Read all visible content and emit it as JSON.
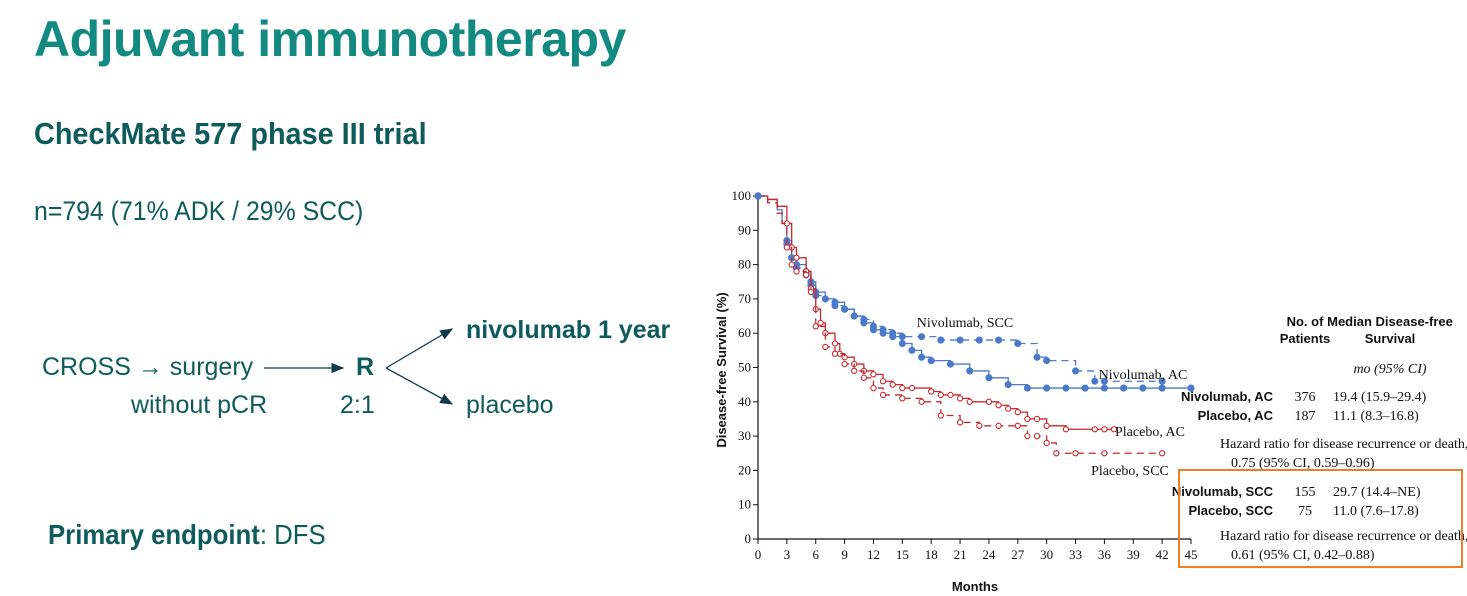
{
  "slide": {
    "title": "Adjuvant immunotherapy",
    "subtitle": "CheckMate 577 phase III trial",
    "population": "n=794 (71% ADK / 29% SCC)",
    "design": {
      "arm_start_line1": "CROSS → surgery",
      "arm_start_line2": "without pCR",
      "randomization": "R",
      "ratio": "2:1",
      "arm_a": "nivolumab 1 year",
      "arm_b": "placebo"
    },
    "endpoint_label": "Primary endpoint",
    "endpoint_value": ": DFS"
  },
  "colors": {
    "title": "#128a81",
    "text": "#0e5b5b",
    "nivolumab": "#4a7ac9",
    "placebo": "#c8292e",
    "highlight_box": "#ee7d23"
  },
  "chart_data": {
    "type": "line",
    "xlabel": "Months",
    "ylabel": "Disease-free Survival (%)",
    "xlim": [
      0,
      45
    ],
    "ylim": [
      0,
      100
    ],
    "xticks": [
      0,
      3,
      6,
      9,
      12,
      15,
      18,
      21,
      24,
      27,
      30,
      33,
      36,
      39,
      42,
      45
    ],
    "yticks": [
      0,
      10,
      20,
      30,
      40,
      50,
      60,
      70,
      80,
      90,
      100
    ],
    "series": [
      {
        "name": "Nivolumab, SCC",
        "color": "#4a7ac9",
        "style": "dashed",
        "marker": "filled-circle",
        "x": [
          0,
          1,
          2,
          2.5,
          3,
          3.5,
          4,
          5,
          5.5,
          6,
          7,
          8,
          9,
          10,
          11,
          12,
          13,
          14,
          15,
          17,
          19,
          21,
          23,
          25,
          27,
          29,
          30,
          33,
          35,
          36,
          42
        ],
        "y": [
          100,
          98,
          95,
          92,
          87,
          82,
          79,
          77,
          74,
          71,
          70,
          68,
          67,
          65,
          64,
          62,
          61,
          60,
          59,
          59,
          58,
          58,
          58,
          58,
          57,
          53,
          52,
          49,
          46,
          46,
          46
        ]
      },
      {
        "name": "Nivolumab, AC",
        "color": "#4a7ac9",
        "style": "solid",
        "marker": "filled-circle",
        "x": [
          0,
          1,
          2,
          2.5,
          3,
          3.5,
          4,
          5,
          5.5,
          6,
          7,
          8,
          9,
          10,
          11,
          12,
          13,
          14,
          15,
          16,
          17,
          18,
          20,
          22,
          24,
          26,
          28,
          30,
          32,
          34,
          36,
          38,
          40,
          42,
          45
        ],
        "y": [
          100,
          99,
          96,
          92,
          86,
          82,
          80,
          78,
          75,
          72,
          70,
          69,
          67,
          65,
          63,
          61,
          60,
          59,
          57,
          55,
          53,
          52,
          51,
          49,
          47,
          45,
          44,
          44,
          44,
          44,
          44,
          44,
          44,
          44,
          44
        ]
      },
      {
        "name": "Placebo, AC",
        "color": "#c8292e",
        "style": "solid",
        "marker": "open-circle",
        "x": [
          0,
          1,
          2,
          3,
          3.5,
          4,
          5,
          5.5,
          6,
          6.5,
          7,
          8,
          8.5,
          9,
          10,
          11,
          12,
          13,
          14,
          15,
          16,
          18,
          19,
          20,
          21,
          22,
          24,
          25,
          26,
          27,
          28,
          29,
          30,
          32,
          35,
          36,
          37
        ],
        "y": [
          100,
          99,
          97,
          92,
          85,
          82,
          78,
          73,
          67,
          63,
          60,
          57,
          54,
          53,
          51,
          49,
          48,
          46,
          45,
          44,
          44,
          43,
          42,
          42,
          41,
          40,
          40,
          39,
          38,
          37,
          35,
          35,
          33,
          32,
          32,
          32,
          32
        ]
      },
      {
        "name": "Placebo, SCC",
        "color": "#c8292e",
        "style": "dashed",
        "marker": "open-circle",
        "x": [
          0,
          1,
          2,
          2.5,
          3,
          3.5,
          4,
          5,
          5.5,
          6,
          7,
          8,
          9,
          10,
          11,
          12,
          13,
          15,
          17,
          19,
          21,
          23,
          25,
          27,
          28,
          29,
          30,
          31,
          33,
          36,
          42
        ],
        "y": [
          100,
          98,
          95,
          92,
          85,
          80,
          78,
          77,
          72,
          62,
          56,
          54,
          51,
          49,
          47,
          44,
          42,
          41,
          40,
          36,
          34,
          33,
          33,
          33,
          30,
          30,
          28,
          25,
          25,
          25,
          25
        ]
      }
    ],
    "table": {
      "header_patients": [
        "No. of",
        "Patients"
      ],
      "header_median": [
        "Median Disease-free",
        "Survival"
      ],
      "header_units": "mo (95% CI)",
      "rows_ac": [
        {
          "group": "Nivolumab, AC",
          "patients": "376",
          "median": "19.4 (15.9–29.4)"
        },
        {
          "group": "Placebo, AC",
          "patients": "187",
          "median": "11.1 (8.3–16.8)"
        }
      ],
      "hr_ac_line1": "Hazard ratio for disease recurrence or death,",
      "hr_ac_line2": "0.75 (95% CI, 0.59–0.96)",
      "rows_scc": [
        {
          "group": "Nivolumab, SCC",
          "patients": "155",
          "median": "29.7 (14.4–NE)"
        },
        {
          "group": "Placebo, SCC",
          "patients": "75",
          "median": "11.0 (7.6–17.8)"
        }
      ],
      "hr_scc_line1": "Hazard ratio for disease recurrence or death,",
      "hr_scc_line2": "0.61 (95% CI, 0.42–0.88)"
    }
  }
}
